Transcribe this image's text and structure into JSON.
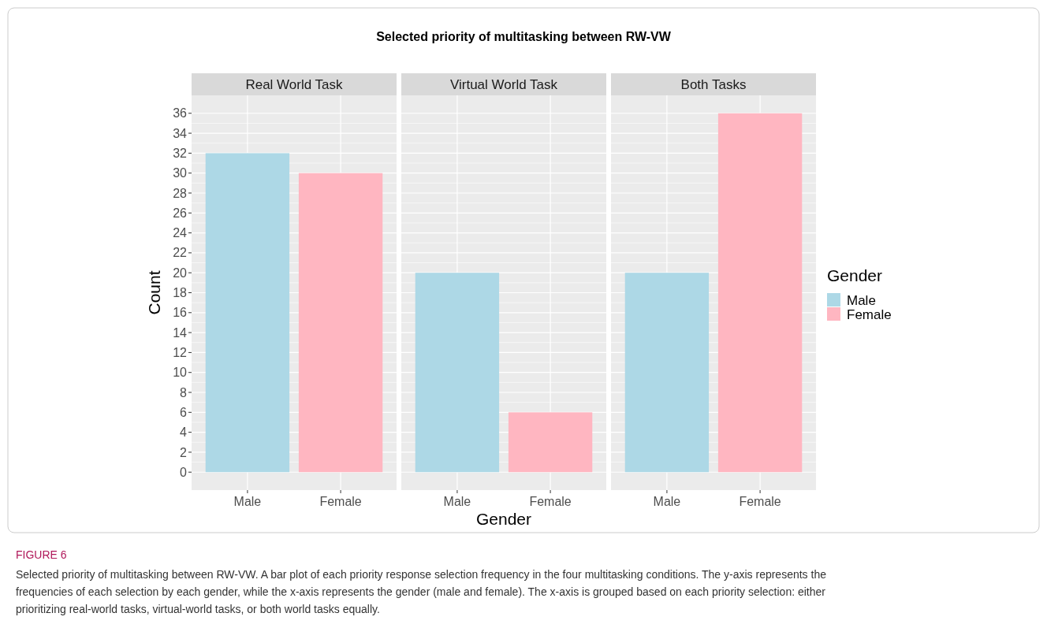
{
  "chart_data": [
    {
      "type": "bar",
      "title": "Real World Task",
      "ylabel": "Count",
      "categories": [
        "Male",
        "Female"
      ],
      "series": [
        {
          "color": "#add8e6",
          "values": [
            32,
            null
          ]
        },
        {
          "color": "#ffb6c1",
          "values": [
            null,
            30
          ]
        }
      ],
      "ylim": [
        -1.8,
        37.8
      ],
      "yticks": [
        0,
        2,
        4,
        6,
        8,
        10,
        12,
        14,
        16,
        18,
        20,
        22,
        24,
        26,
        28,
        30,
        32,
        34,
        36
      ],
      "grid": true,
      "annotations": [
        "Selected priority of multitasking between RW-VW",
        "FIGURE 6",
        "Selected priority of multitasking between RW-VW. A bar plot of each priority response selection frequency in the four multitasking conditions. The y-axis represents the frequencies of each selection by each gender, while the x-axis represents the gender (male and female). The x-axis is grouped based on each priority selection: either prioritizing real-world tasks, virtual-world tasks, or both world tasks equally."
      ]
    },
    {
      "type": "bar",
      "title": "Virtual World Task",
      "xlabel": "Gender",
      "categories": [
        "Male",
        "Female"
      ],
      "series": [
        {
          "color": "#add8e6",
          "values": [
            20,
            null
          ]
        },
        {
          "color": "#ffb6c1",
          "values": [
            null,
            6
          ]
        }
      ],
      "ylim": [
        -1.8,
        37.8
      ],
      "yticks": [
        0,
        2,
        4,
        6,
        8,
        10,
        12,
        14,
        16,
        18,
        20,
        22,
        24,
        26,
        28,
        30,
        32,
        34,
        36
      ],
      "grid": true,
      "tick_labels": "x"
    },
    {
      "type": "bar",
      "title": "Both Tasks",
      "categories": [
        "Male",
        "Female"
      ],
      "series": [
        {
          "name": "Male",
          "color": "#add8e6",
          "values": [
            20,
            null
          ]
        },
        {
          "name": "Female",
          "color": "#ffb6c1",
          "values": [
            null,
            36
          ]
        }
      ],
      "ylim": [
        -1.8,
        37.8
      ],
      "yticks": [
        0,
        2,
        4,
        6,
        8,
        10,
        12,
        14,
        16,
        18,
        20,
        22,
        24,
        26,
        28,
        30,
        32,
        34,
        36
      ],
      "grid": true,
      "tick_labels": "x",
      "legend": "right",
      "legend_title": "Gender"
    }
  ]
}
